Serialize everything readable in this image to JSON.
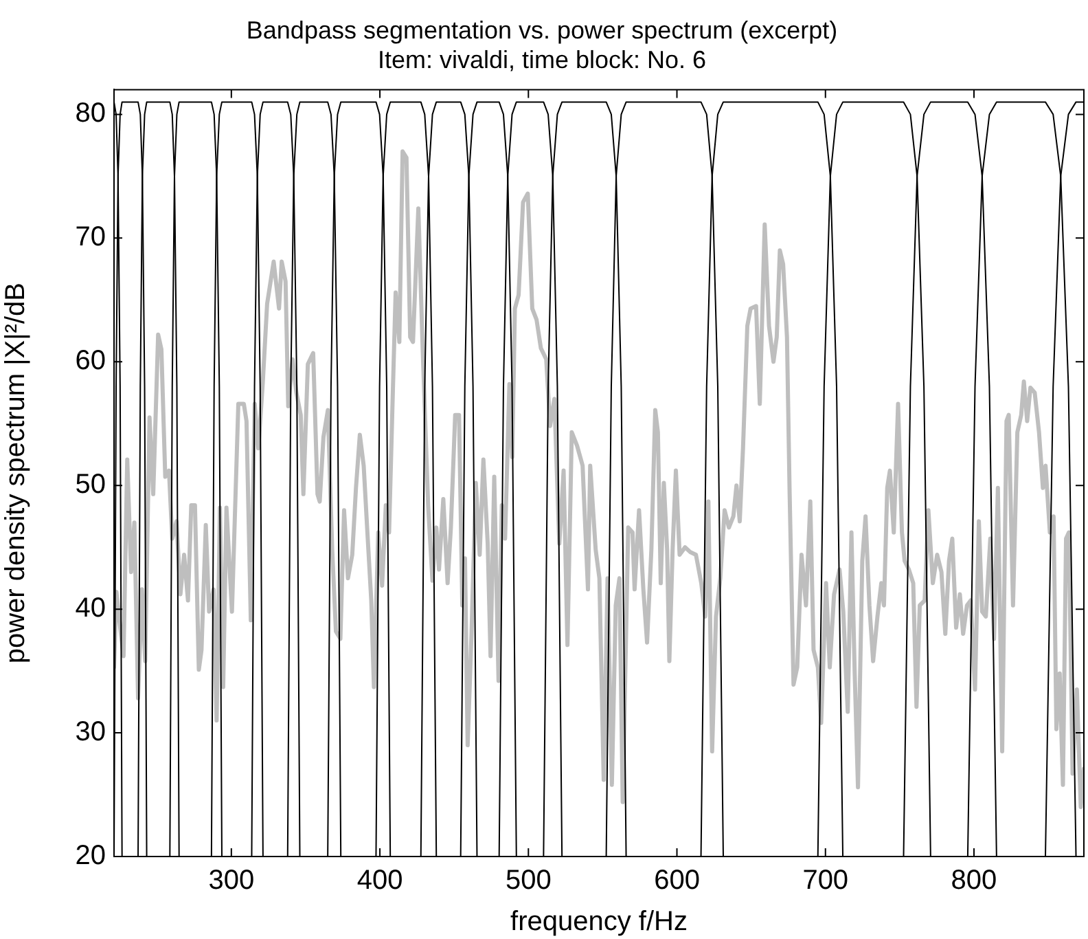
{
  "chart_data": {
    "type": "line",
    "title": "Bandpass segmentation vs. power spectrum (excerpt)",
    "subtitle": "Item: vivaldi, time block: No. 6",
    "xlabel": "frequency f/Hz",
    "ylabel": "power density spectrum |X|²/dB",
    "xlim": [
      221,
      874
    ],
    "xticks": [
      300,
      400,
      500,
      600,
      700,
      800
    ],
    "ylim": [
      20,
      82
    ],
    "yticks": [
      20,
      30,
      40,
      50,
      60,
      70,
      80
    ],
    "legend": false,
    "marker": "none",
    "line_style": "solid",
    "series": [
      {
        "color": "#bebebe",
        "x": [
          221,
          222.6,
          225.2,
          227.4,
          229.9,
          232.5,
          234.7,
          237.2,
          239.8,
          242.0,
          244.9,
          247.4,
          250.7,
          252.9,
          255.5,
          258.0,
          260.2,
          263.1,
          265.7,
          268.2,
          270.8,
          273.0,
          275.5,
          278.1,
          279.9,
          282.8,
          285.0,
          288.0,
          290.1,
          292.3,
          294.5,
          296.7,
          300.4,
          304.7,
          308.4,
          310.2,
          313.1,
          315.7,
          318.2,
          321.2,
          324.1,
          328.5,
          332.1,
          333.9,
          336.5,
          338.3,
          341.2,
          343.8,
          346.7,
          348.5,
          351.5,
          355.1,
          358.0,
          359.5,
          362.0,
          365.0,
          367.9,
          370.4,
          373.4,
          375.9,
          378.5,
          381.4,
          383.9,
          386.5,
          389.1,
          391.6,
          394.2,
          396.0,
          398.9,
          401.5,
          404.0,
          406.2,
          408.8,
          410.6,
          413.1,
          415.3,
          417.9,
          420.4,
          422.3,
          425.9,
          428.8,
          432.5,
          435.4,
          438.0,
          439.8,
          442.7,
          445.6,
          447.8,
          450.7,
          453.3,
          455.5,
          457.3,
          459.1,
          461.7,
          464.6,
          467.2,
          469.7,
          472.6,
          474.5,
          477.0,
          479.9,
          482.1,
          484.3,
          487.2,
          489.1,
          490.9,
          493.4,
          496.4,
          499.6,
          502.6,
          505.5,
          508.4,
          512.0,
          514.6,
          517.5,
          520.8,
          523.7,
          526.3,
          529.2,
          532.8,
          536.5,
          540.1,
          541.6,
          545.3,
          547.8,
          550.7,
          553.3,
          556.2,
          558.8,
          561.3,
          563.5,
          567.2,
          570.1,
          571.5,
          574.5,
          577.4,
          579.9,
          582.8,
          585.4,
          587.2,
          589.1,
          591.2,
          593.4,
          594.9,
          597.1,
          599.3,
          601.8,
          605.5,
          609.1,
          612.8,
          616.4,
          619.0,
          621.2,
          623.7,
          626.3,
          629.2,
          632.1,
          635.0,
          638.0,
          640.1,
          642.3,
          644.5,
          647.4,
          649.6,
          653.3,
          655.8,
          659.1,
          662.0,
          665.0,
          667.2,
          669.3,
          671.5,
          674.1,
          675.9,
          678.5,
          681.0,
          683.9,
          686.9,
          689.8,
          692.0,
          694.9,
          697.1,
          700.4,
          702.9,
          705.8,
          709.5,
          712.0,
          715.0,
          717.5,
          719.7,
          721.9,
          724.8,
          727.0,
          729.6,
          732.1,
          735.0,
          737.6,
          739.4,
          741.6,
          743.4,
          746.0,
          748.9,
          751.5,
          753.3,
          756.2,
          759.1,
          761.3,
          763.5,
          766.8,
          769.3,
          772.3,
          775.2,
          778.1,
          780.7,
          783.2,
          785.4,
          788.0,
          790.5,
          792.7,
          795.3,
          797.8,
          800.7,
          803.3,
          805.5,
          808.0,
          811.0,
          813.5,
          816.1,
          819.0,
          821.9,
          823.4,
          826.3,
          829.2,
          831.8,
          833.6,
          835.8,
          838.0,
          840.9,
          843.8,
          846.4,
          848.2,
          851.1,
          853.6,
          855.5,
          857.7,
          859.9,
          862.0,
          863.9,
          866.4,
          869.3,
          871.9,
          874
        ],
        "values": [
          35.3,
          41.4,
          38.5,
          36.2,
          52.1,
          43.0,
          47.0,
          32.8,
          41.6,
          35.8,
          55.5,
          49.3,
          62.2,
          61.0,
          50.7,
          51.2,
          45.7,
          47.1,
          41.2,
          44.4,
          40.7,
          48.4,
          48.4,
          35.1,
          36.7,
          46.8,
          39.8,
          41.6,
          31.0,
          48.2,
          33.7,
          48.2,
          39.8,
          56.6,
          56.6,
          55.2,
          39.1,
          56.6,
          53.0,
          58.4,
          64.7,
          68.1,
          64.3,
          68.1,
          66.5,
          56.4,
          60.2,
          57.5,
          55.7,
          49.3,
          59.8,
          60.7,
          49.3,
          48.7,
          53.9,
          56.1,
          44.8,
          38.2,
          37.6,
          48.0,
          42.5,
          44.4,
          49.8,
          54.1,
          51.6,
          46.2,
          40.7,
          33.7,
          46.2,
          41.9,
          48.4,
          46.2,
          57.9,
          65.6,
          61.6,
          77.0,
          76.5,
          62.0,
          61.6,
          72.4,
          61.1,
          48.4,
          42.3,
          46.6,
          43.2,
          48.9,
          42.1,
          46.6,
          55.7,
          55.7,
          40.3,
          44.1,
          29.0,
          38.0,
          50.2,
          44.4,
          52.1,
          45.3,
          36.2,
          50.7,
          34.2,
          48.4,
          45.7,
          58.2,
          52.3,
          64.3,
          65.4,
          72.9,
          73.6,
          64.3,
          63.4,
          61.1,
          60.2,
          54.8,
          57.0,
          45.3,
          51.2,
          37.1,
          54.3,
          53.2,
          51.6,
          41.6,
          51.6,
          44.8,
          42.5,
          26.2,
          42.5,
          25.8,
          40.3,
          42.5,
          24.4,
          46.6,
          46.2,
          41.6,
          48.0,
          41.6,
          37.3,
          44.8,
          56.1,
          54.3,
          42.1,
          50.2,
          44.8,
          35.8,
          44.8,
          51.2,
          44.4,
          45.0,
          44.6,
          44.4,
          42.1,
          39.4,
          48.7,
          28.5,
          39.4,
          42.5,
          48.0,
          46.6,
          47.5,
          50.0,
          47.1,
          53.0,
          62.9,
          64.3,
          64.5,
          56.6,
          71.1,
          62.9,
          60.0,
          62.0,
          69.0,
          67.9,
          62.0,
          49.3,
          33.9,
          35.3,
          44.4,
          40.3,
          48.7,
          36.7,
          35.3,
          30.8,
          42.1,
          35.3,
          41.2,
          43.2,
          39.8,
          31.7,
          46.2,
          34.8,
          25.6,
          43.9,
          47.5,
          40.3,
          35.8,
          39.4,
          42.1,
          40.3,
          49.8,
          51.2,
          46.2,
          56.6,
          46.2,
          43.9,
          43.2,
          42.1,
          32.1,
          40.3,
          40.7,
          48.0,
          42.1,
          44.4,
          43.0,
          38.0,
          43.9,
          45.7,
          38.5,
          41.2,
          38.0,
          40.3,
          40.7,
          33.5,
          47.1,
          39.8,
          39.4,
          45.7,
          37.6,
          49.8,
          28.5,
          55.2,
          55.7,
          40.3,
          54.3,
          55.7,
          58.4,
          55.2,
          57.9,
          57.5,
          54.3,
          49.8,
          51.6,
          46.2,
          47.5,
          30.3,
          34.8,
          25.8,
          45.7,
          46.2,
          26.7,
          33.5,
          24.0,
          27.1
        ]
      },
      {
        "color": "#000000",
        "x": [
          221.0,
          222.4,
          223.7,
          225.1,
          226.4
        ],
        "values": [
          81,
          80,
          75,
          58,
          20
        ]
      },
      {
        "color": "#000000",
        "x": [
          221.0,
          222.4,
          223.7,
          225.1,
          226.4,
          237.2,
          238.7,
          240.1,
          241.6,
          243.0
        ],
        "values": [
          20,
          58,
          75,
          80,
          81,
          81,
          80,
          75,
          58,
          20
        ]
      },
      {
        "color": "#000000",
        "x": [
          237.2,
          238.7,
          240.1,
          241.6,
          243.0,
          258.6,
          260.2,
          261.7,
          263.3,
          264.8
        ],
        "values": [
          20,
          58,
          75,
          80,
          81,
          81,
          80,
          75,
          58,
          20
        ]
      },
      {
        "color": "#000000",
        "x": [
          258.6,
          260.2,
          261.7,
          263.3,
          264.8,
          286.6,
          288.4,
          290.1,
          291.9,
          293.6
        ],
        "values": [
          20,
          58,
          75,
          80,
          81,
          81,
          80,
          75,
          58,
          20
        ]
      },
      {
        "color": "#000000",
        "x": [
          286.6,
          288.4,
          290.1,
          291.9,
          293.6,
          313.7,
          315.6,
          317.5,
          319.4,
          321.3
        ],
        "values": [
          20,
          58,
          75,
          80,
          81,
          81,
          80,
          75,
          58,
          20
        ]
      },
      {
        "color": "#000000",
        "x": [
          313.7,
          315.6,
          317.5,
          319.4,
          321.3,
          337.9,
          340.0,
          342.0,
          344.1,
          346.1
        ],
        "values": [
          20,
          58,
          75,
          80,
          81,
          81,
          80,
          75,
          58,
          20
        ]
      },
      {
        "color": "#000000",
        "x": [
          337.9,
          340.0,
          342.0,
          344.1,
          346.1,
          364.9,
          367.1,
          369.3,
          371.5,
          373.7
        ],
        "values": [
          20,
          58,
          75,
          80,
          81,
          81,
          80,
          75,
          58,
          20
        ]
      },
      {
        "color": "#000000",
        "x": [
          364.9,
          367.1,
          369.3,
          371.5,
          373.7,
          397.4,
          399.8,
          402.2,
          404.6,
          407.0
        ],
        "values": [
          20,
          58,
          75,
          80,
          81,
          81,
          80,
          75,
          58,
          20
        ]
      },
      {
        "color": "#000000",
        "x": [
          397.4,
          399.8,
          402.2,
          404.6,
          407.0,
          427.6,
          430.2,
          432.8,
          435.4,
          438.0
        ],
        "values": [
          20,
          58,
          75,
          80,
          81,
          81,
          80,
          75,
          58,
          20
        ]
      },
      {
        "color": "#000000",
        "x": [
          427.6,
          430.2,
          432.8,
          435.4,
          438.0,
          454.4,
          457.2,
          459.9,
          462.7,
          465.4
        ],
        "values": [
          20,
          58,
          75,
          80,
          81,
          81,
          80,
          75,
          58,
          20
        ]
      },
      {
        "color": "#000000",
        "x": [
          454.4,
          457.2,
          459.9,
          462.7,
          465.4,
          480.3,
          483.2,
          486.1,
          489.0,
          491.9
        ],
        "values": [
          20,
          58,
          75,
          80,
          81,
          81,
          80,
          75,
          58,
          20
        ]
      },
      {
        "color": "#000000",
        "x": [
          480.3,
          483.2,
          486.1,
          489.0,
          491.9,
          510.2,
          513.3,
          516.4,
          519.5,
          522.6
        ],
        "values": [
          20,
          58,
          75,
          80,
          81,
          81,
          80,
          75,
          58,
          20
        ]
      },
      {
        "color": "#000000",
        "x": [
          510.2,
          513.3,
          516.4,
          519.5,
          522.6,
          552.4,
          555.8,
          559.1,
          562.5,
          565.8
        ],
        "values": [
          20,
          58,
          75,
          80,
          81,
          81,
          80,
          75,
          58,
          20
        ]
      },
      {
        "color": "#000000",
        "x": [
          552.4,
          555.8,
          559.1,
          562.5,
          565.8,
          616.2,
          620.0,
          623.7,
          627.5,
          631.2
        ],
        "values": [
          20,
          58,
          75,
          80,
          81,
          81,
          80,
          75,
          58,
          20
        ]
      },
      {
        "color": "#000000",
        "x": [
          616.2,
          620.0,
          623.7,
          627.5,
          631.2,
          694.9,
          699.1,
          703.3,
          707.5,
          711.7
        ],
        "values": [
          20,
          58,
          75,
          80,
          81,
          81,
          80,
          75,
          58,
          20
        ]
      },
      {
        "color": "#000000",
        "x": [
          694.9,
          699.1,
          703.3,
          707.5,
          711.7,
          752.6,
          757.2,
          761.7,
          766.3,
          770.8
        ],
        "values": [
          20,
          58,
          75,
          80,
          81,
          81,
          80,
          75,
          58,
          20
        ]
      },
      {
        "color": "#000000",
        "x": [
          752.6,
          757.2,
          761.7,
          766.3,
          770.8,
          795.8,
          800.7,
          805.5,
          810.4,
          815.2
        ],
        "values": [
          20,
          58,
          75,
          80,
          81,
          81,
          80,
          75,
          58,
          20
        ]
      },
      {
        "color": "#000000",
        "x": [
          795.8,
          800.7,
          805.5,
          810.4,
          815.2,
          848.1,
          853.3,
          858.4,
          863.6,
          868.7
        ],
        "values": [
          20,
          58,
          75,
          80,
          81,
          81,
          80,
          75,
          58,
          20
        ]
      },
      {
        "color": "#000000",
        "x": [
          848.1,
          853.3,
          858.4,
          863.6,
          868.7,
          874
        ],
        "values": [
          20,
          58,
          75,
          80,
          81,
          81
        ]
      }
    ]
  }
}
